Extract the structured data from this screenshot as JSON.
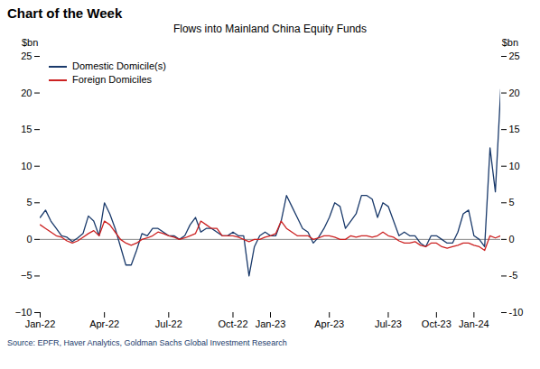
{
  "chart_data": {
    "type": "line",
    "title": "Chart of the Week",
    "subtitle": "Flows into Mainland China Equity Funds",
    "ylabel": "$bn",
    "y2label": "$bn",
    "source": "Source: EPFR, Haver Analytics, Goldman Sachs Global Investment Research",
    "categories": [
      "Jan-22",
      null,
      null,
      null,
      null,
      null,
      null,
      null,
      null,
      null,
      null,
      null,
      "Apr-22",
      null,
      null,
      null,
      null,
      null,
      null,
      null,
      null,
      null,
      null,
      null,
      "Jul-22",
      null,
      null,
      null,
      null,
      null,
      null,
      null,
      null,
      null,
      null,
      null,
      "Oct-22",
      null,
      null,
      null,
      null,
      null,
      null,
      "Jan-23",
      null,
      null,
      null,
      null,
      null,
      null,
      null,
      null,
      null,
      null,
      "Apr-23",
      null,
      null,
      null,
      null,
      null,
      null,
      null,
      null,
      null,
      null,
      "Jul-23",
      null,
      null,
      null,
      null,
      null,
      null,
      null,
      null,
      "Oct-23",
      null,
      null,
      null,
      null,
      null,
      null,
      "Jan-24",
      null,
      null,
      null,
      null,
      null
    ],
    "series": [
      {
        "name": "Domestic Domicile(s)",
        "color": "#1a3a6b",
        "values": [
          3.0,
          4.0,
          2.5,
          1.5,
          0.5,
          0.3,
          -0.3,
          0.2,
          0.8,
          3.2,
          2.5,
          0.5,
          5.0,
          3.5,
          1.5,
          -1.0,
          -3.5,
          -3.5,
          -1.5,
          0.8,
          0.5,
          1.5,
          1.5,
          1.0,
          0.5,
          0.5,
          0.0,
          0.5,
          2.0,
          3.0,
          1.0,
          1.5,
          1.5,
          1.0,
          0.5,
          0.5,
          1.0,
          0.5,
          0.5,
          -5.0,
          -1.0,
          0.5,
          1.0,
          0.5,
          0.5,
          2.5,
          6.0,
          4.5,
          3.0,
          1.5,
          1.0,
          -0.5,
          0.3,
          1.5,
          3.0,
          5.0,
          4.5,
          1.5,
          2.5,
          3.5,
          6.0,
          6.0,
          5.5,
          3.0,
          5.0,
          4.5,
          2.5,
          0.5,
          1.0,
          0.5,
          0.5,
          -0.5,
          -1.0,
          0.5,
          0.5,
          0.0,
          -0.5,
          -0.5,
          1.0,
          3.5,
          4.0,
          0.5,
          0.0,
          -1.0,
          12.5,
          6.5,
          20.5
        ]
      },
      {
        "name": "Foreign Domiciles",
        "color": "#cc2222",
        "values": [
          2.0,
          1.5,
          1.0,
          0.5,
          0.3,
          -0.2,
          -0.5,
          -0.2,
          0.3,
          0.8,
          1.2,
          0.5,
          2.5,
          2.0,
          1.0,
          0.0,
          -0.5,
          -0.8,
          -0.5,
          0.0,
          0.2,
          0.5,
          1.0,
          0.8,
          0.5,
          0.3,
          0.0,
          0.2,
          0.5,
          0.8,
          2.5,
          2.0,
          1.5,
          1.5,
          0.5,
          0.5,
          0.5,
          0.3,
          0.0,
          -0.3,
          0.0,
          0.0,
          0.3,
          0.5,
          0.8,
          2.5,
          1.5,
          1.0,
          0.5,
          0.5,
          0.5,
          0.0,
          0.2,
          0.5,
          0.5,
          0.3,
          0.0,
          0.0,
          0.5,
          0.3,
          0.5,
          0.5,
          0.3,
          0.5,
          1.0,
          0.5,
          0.3,
          -0.2,
          -0.5,
          -0.5,
          -0.3,
          -0.8,
          -1.0,
          -0.5,
          -0.5,
          -1.0,
          -1.2,
          -1.0,
          -0.8,
          -0.5,
          -0.5,
          -0.8,
          -1.0,
          -1.5,
          0.5,
          0.2,
          0.5
        ]
      }
    ],
    "ylim": [
      -10,
      25
    ],
    "yticks": [
      -10,
      -5,
      0,
      5,
      10,
      15,
      20,
      25
    ],
    "y2lim": [
      -10,
      25
    ],
    "y2ticks": [
      -10,
      -5,
      0,
      5,
      10,
      15,
      20,
      25
    ],
    "grid": false,
    "legend": "upper left"
  }
}
